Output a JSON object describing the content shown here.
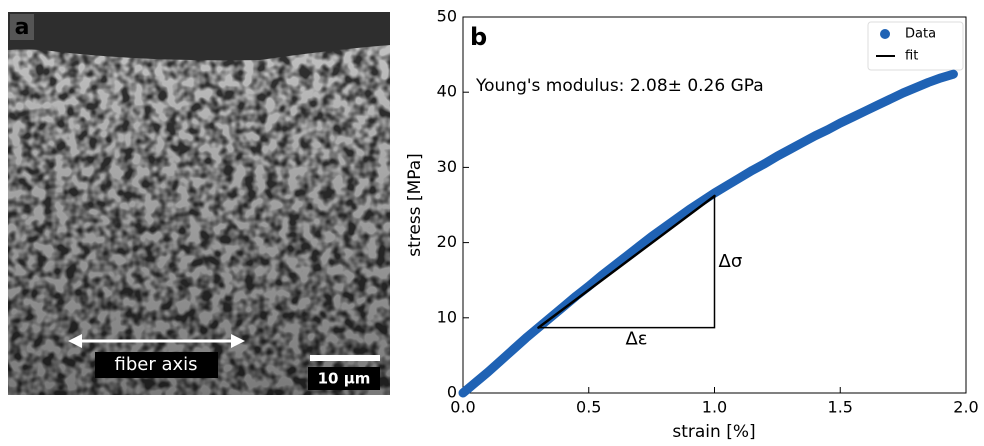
{
  "panel_a": {
    "label": "a",
    "annotation": "fiber axis",
    "scale_bar": "10 µm"
  },
  "chart_data": {
    "type": "line",
    "panel_label": "b",
    "annotation": "Young's modulus: 2.08± 0.26 GPa",
    "strain_label": "Δε",
    "stress_label": "Δσ",
    "xlabel": "strain [%]",
    "ylabel": "stress [MPa]",
    "xlim": [
      0,
      2
    ],
    "xticks": [
      {
        "value": 0,
        "label": "0.0"
      },
      0.5,
      {
        "value": 1,
        "label": "1.0"
      },
      1.5,
      {
        "value": 2,
        "label": "2.0"
      }
    ],
    "ylim": [
      0,
      50
    ],
    "yticks": [
      0,
      10,
      20,
      30,
      40,
      50
    ],
    "legend": "upper right",
    "series": [
      {
        "name": "Data",
        "color": "#1f62b4",
        "x": [
          0,
          0.05,
          0.1,
          0.15,
          0.2,
          0.25,
          0.3,
          0.35,
          0.4,
          0.45,
          0.5,
          0.55,
          0.6,
          0.65,
          0.7,
          0.75,
          0.8,
          0.85,
          0.9,
          0.95,
          1.0,
          1.05,
          1.1,
          1.15,
          1.2,
          1.25,
          1.3,
          1.35,
          1.4,
          1.45,
          1.5,
          1.55,
          1.6,
          1.65,
          1.7,
          1.75,
          1.8,
          1.85,
          1.9,
          1.95
        ],
        "values": [
          0,
          1.4,
          2.8,
          4.3,
          5.8,
          7.3,
          8.7,
          10.1,
          11.5,
          12.9,
          14.2,
          15.6,
          16.9,
          18.2,
          19.5,
          20.8,
          22.0,
          23.2,
          24.4,
          25.5,
          26.6,
          27.6,
          28.6,
          29.6,
          30.5,
          31.5,
          32.4,
          33.3,
          34.2,
          35.0,
          35.9,
          36.7,
          37.5,
          38.3,
          39.1,
          39.9,
          40.6,
          41.3,
          41.9,
          42.4
        ]
      },
      {
        "name": "fit",
        "color": "#000000",
        "x": [
          0.3,
          1.0
        ],
        "values": [
          8.7,
          26.2
        ]
      }
    ]
  }
}
